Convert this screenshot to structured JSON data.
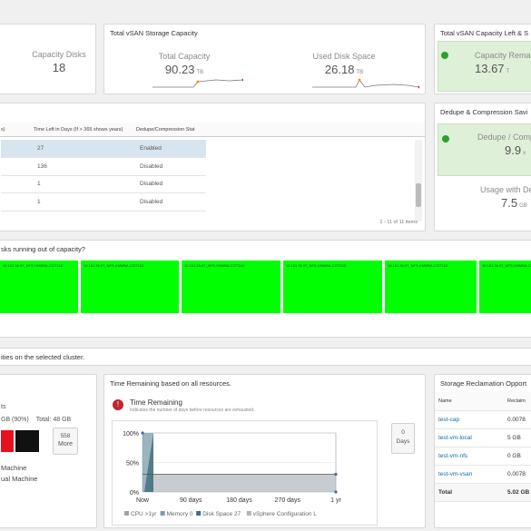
{
  "cap_disks": {
    "label": "Capacity Disks",
    "value": "18"
  },
  "storage": {
    "title": "Total vSAN Storage Capacity",
    "total_label": "Total Capacity",
    "total_value": "90.23",
    "total_unit": "TB",
    "used_label": "Used Disk Space",
    "used_value": "26.18",
    "used_unit": "TB"
  },
  "left_panel": {
    "title": "Total vSAN Capacity Left & S",
    "label": "Capacity Remai",
    "value": "13.67",
    "unit": "T"
  },
  "table1": {
    "header_partial": "s)",
    "header_time": "Time Left in Days (If > 365 shows years)",
    "header_dedupe": "Dedupe/Compression Stat",
    "rows": [
      {
        "days": "27",
        "status": "Enabled"
      },
      {
        "days": "136",
        "status": "Disabled"
      },
      {
        "days": "1",
        "status": "Disabled"
      },
      {
        "days": "1",
        "status": "Disabled"
      }
    ],
    "pager": "1 - 11 of 11 items"
  },
  "dedupe": {
    "title": "Dedupe & Compression Savi",
    "ratio_label": "Dedupe / Comp",
    "ratio_value": "9.9",
    "ratio_unit": "x",
    "usage_label": "Usage with De",
    "usage_value": "7.5",
    "usage_unit": "GB"
  },
  "heatmap": {
    "question": "sks running out of capacity?",
    "tiles": [
      "10.161.36.97_NFS-VMMBA-COT11D",
      "10.161.36.97_NFS-VMMBA-COT11D",
      "10.161.36.97_NFS-VMMBA-COT11D",
      "10.161.36.97_NFS-VMMBA-COT11D",
      "10.161.36.97_NFS-VMMBA-COT11D",
      "10.161.36.97_NFS-VMMBA-COT11D"
    ]
  },
  "entities_text": "ities on the selected cluster.",
  "bottom_left": {
    "line1": "ts",
    "used": "GB (90%)",
    "total": "Total: 48 GB",
    "more_count": "558",
    "more_label": "More",
    "legend1": "Machine",
    "legend2": "ual Machine",
    "colors": {
      "red": "#e8101e",
      "black": "#111111"
    }
  },
  "time_remaining": {
    "panel_title": "Time Remaining based on all resources.",
    "title": "Time Remaining",
    "subtitle": "Indicates the number of days before resources are exhausted.",
    "days_value": "0",
    "days_label": "Days",
    "chart_data": {
      "type": "area",
      "y_ticks": [
        "100%",
        "50%",
        "0%"
      ],
      "x_ticks": [
        "Now",
        "90 days",
        "180 days",
        "270 days",
        "1 yr"
      ],
      "series": [
        {
          "name": "CPU >1yr",
          "values": [
            5,
            5,
            5,
            5,
            5
          ]
        },
        {
          "name": "Memory 0",
          "values": [
            0,
            0,
            0,
            0,
            0
          ]
        },
        {
          "name": "Disk Space 27",
          "values": [
            100,
            0,
            0,
            0,
            0
          ]
        },
        {
          "name": "vSphere Configuration L",
          "values": [
            30,
            30,
            30,
            30,
            30
          ]
        }
      ]
    }
  },
  "reclaim": {
    "title": "Storage Reclamation Opport",
    "col_name": "Name",
    "col_val": "Reclaim",
    "rows": [
      {
        "name": "test-cap",
        "val": "0.0078"
      },
      {
        "name": "test-vm-local",
        "val": "5 GB"
      },
      {
        "name": "test-vm-nfs",
        "val": "0 GB"
      },
      {
        "name": "test-vm-vsan",
        "val": "0.0078"
      }
    ],
    "total_label": "Total",
    "total_val": "5.02 GB"
  }
}
